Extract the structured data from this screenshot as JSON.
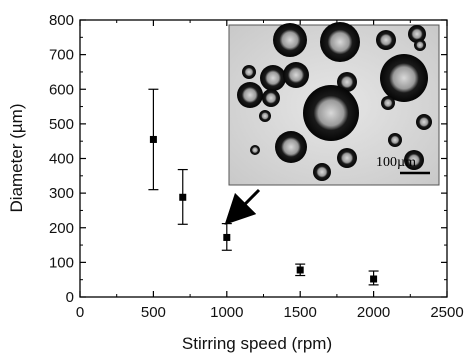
{
  "chart_data": {
    "type": "scatter",
    "title": "",
    "xlabel": "Stirring speed (rpm)",
    "ylabel": "Diameter (µm)",
    "xlim": [
      0,
      2500
    ],
    "ylim": [
      0,
      800
    ],
    "xticks": [
      0,
      500,
      1000,
      1500,
      2000,
      2500
    ],
    "yticks": [
      0,
      100,
      200,
      300,
      400,
      500,
      600,
      700,
      800
    ],
    "grid": false,
    "legend": "none",
    "marker": "square",
    "color": "#000000",
    "points": [
      {
        "x": 500,
        "y": 455,
        "err_low": 310,
        "err_high": 600
      },
      {
        "x": 700,
        "y": 288,
        "err_low": 210,
        "err_high": 368
      },
      {
        "x": 1000,
        "y": 172,
        "err_low": 135,
        "err_high": 212
      },
      {
        "x": 1500,
        "y": 78,
        "err_low": 62,
        "err_high": 95
      },
      {
        "x": 2000,
        "y": 52,
        "err_low": 35,
        "err_high": 75
      }
    ],
    "annotations": [
      {
        "type": "arrow",
        "points_to": {
          "x": 1000,
          "y": 215
        }
      }
    ],
    "inset": {
      "description_icon": "micrograph-image",
      "scale_bar_label": "100µm"
    }
  }
}
